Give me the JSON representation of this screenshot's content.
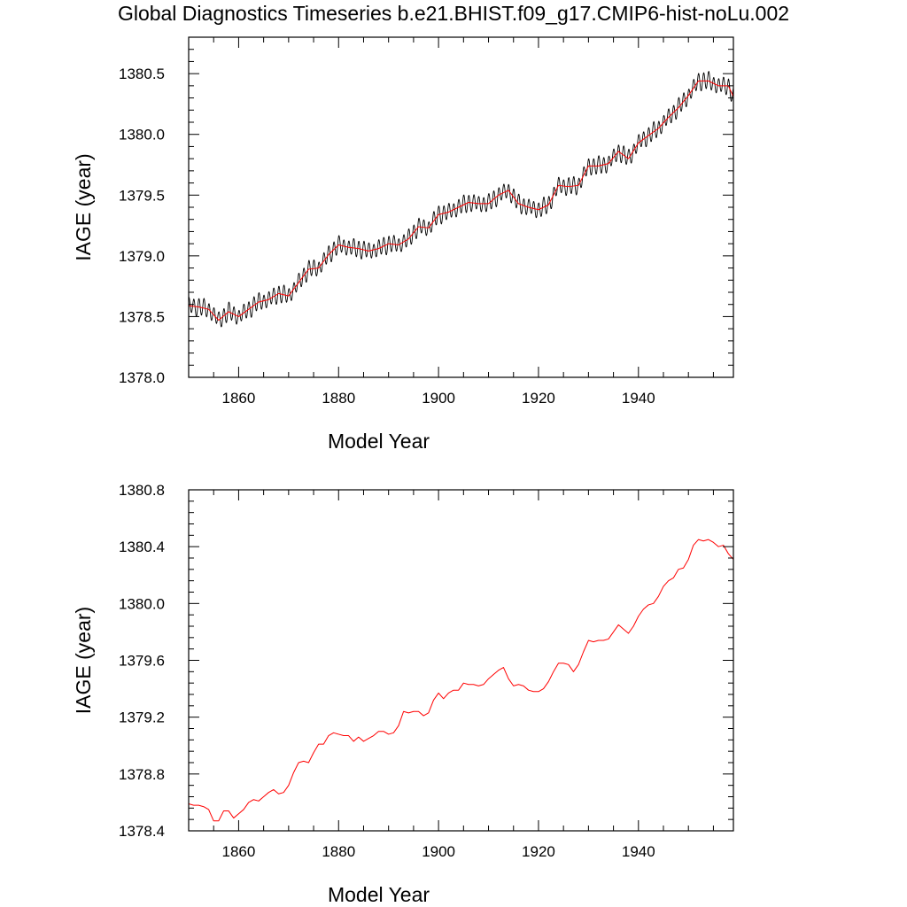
{
  "title": "Global Diagnostics Timeseries b.e21.BHIST.f09_g17.CMIP6-hist-noLu.002",
  "colors": {
    "monthly": "#000000",
    "annual": "#ff0000"
  },
  "chart_data": [
    {
      "type": "line",
      "xlabel": "Model Year",
      "ylabel": "IAGE (year)",
      "xlim": [
        1850,
        1959
      ],
      "ylim": [
        1378.0,
        1380.8
      ],
      "xticks": [
        "1860",
        "1880",
        "1900",
        "1920",
        "1940"
      ],
      "yticks": [
        "1378.0",
        "1378.5",
        "1379.0",
        "1379.5",
        "1380.0",
        "1380.5"
      ],
      "series": [
        {
          "style": "monthly",
          "x": [],
          "values": [],
          "seasonal_amplitude": 0.065
        },
        {
          "style": "annual",
          "x": [
            1850,
            1852,
            1854,
            1856,
            1858,
            1860,
            1862,
            1864,
            1866,
            1868,
            1870,
            1872,
            1874,
            1876,
            1878,
            1880,
            1882,
            1884,
            1886,
            1888,
            1890,
            1892,
            1894,
            1896,
            1898,
            1900,
            1902,
            1904,
            1906,
            1908,
            1910,
            1912,
            1914,
            1916,
            1918,
            1920,
            1922,
            1924,
            1926,
            1928,
            1930,
            1932,
            1934,
            1936,
            1938,
            1940,
            1942,
            1944,
            1946,
            1948,
            1950,
            1952,
            1954,
            1956,
            1958,
            1959
          ],
          "values": [
            1378.59,
            1378.58,
            1378.56,
            1378.47,
            1378.54,
            1378.5,
            1378.56,
            1378.62,
            1378.64,
            1378.69,
            1378.67,
            1378.78,
            1378.89,
            1378.9,
            1379.01,
            1379.09,
            1379.07,
            1379.06,
            1379.04,
            1379.06,
            1379.1,
            1379.09,
            1379.14,
            1379.24,
            1379.23,
            1379.34,
            1379.36,
            1379.4,
            1379.44,
            1379.43,
            1379.43,
            1379.5,
            1379.54,
            1379.43,
            1379.4,
            1379.38,
            1379.42,
            1379.58,
            1379.57,
            1379.58,
            1379.74,
            1379.74,
            1379.76,
            1379.86,
            1379.8,
            1379.93,
            1379.99,
            1380.05,
            1380.14,
            1380.22,
            1380.32,
            1380.44,
            1380.44,
            1380.4,
            1380.4,
            1380.31
          ]
        }
      ]
    },
    {
      "type": "line",
      "xlabel": "Model Year",
      "ylabel": "IAGE (year)",
      "xlim": [
        1850,
        1959
      ],
      "ylim": [
        1378.4,
        1380.8
      ],
      "xticks": [
        "1860",
        "1880",
        "1900",
        "1920",
        "1940"
      ],
      "yticks": [
        "1378.4",
        "1378.8",
        "1379.2",
        "1379.6",
        "1380.0",
        "1380.4",
        "1380.8"
      ],
      "series": [
        {
          "style": "annual",
          "x": [
            1850,
            1851,
            1852,
            1853,
            1854,
            1855,
            1856,
            1857,
            1858,
            1859,
            1860,
            1861,
            1862,
            1863,
            1864,
            1865,
            1866,
            1867,
            1868,
            1869,
            1870,
            1871,
            1872,
            1873,
            1874,
            1875,
            1876,
            1877,
            1878,
            1879,
            1880,
            1881,
            1882,
            1883,
            1884,
            1885,
            1886,
            1887,
            1888,
            1889,
            1890,
            1891,
            1892,
            1893,
            1894,
            1895,
            1896,
            1897,
            1898,
            1899,
            1900,
            1901,
            1902,
            1903,
            1904,
            1905,
            1906,
            1907,
            1908,
            1909,
            1910,
            1911,
            1912,
            1913,
            1914,
            1915,
            1916,
            1917,
            1918,
            1919,
            1920,
            1921,
            1922,
            1923,
            1924,
            1925,
            1926,
            1927,
            1928,
            1929,
            1930,
            1931,
            1932,
            1933,
            1934,
            1935,
            1936,
            1937,
            1938,
            1939,
            1940,
            1941,
            1942,
            1943,
            1944,
            1945,
            1946,
            1947,
            1948,
            1949,
            1950,
            1951,
            1952,
            1953,
            1954,
            1955,
            1956,
            1957,
            1958,
            1959
          ],
          "values": [
            1378.59,
            1378.58,
            1378.58,
            1378.57,
            1378.55,
            1378.47,
            1378.47,
            1378.54,
            1378.54,
            1378.49,
            1378.52,
            1378.55,
            1378.6,
            1378.62,
            1378.61,
            1378.64,
            1378.67,
            1378.69,
            1378.66,
            1378.67,
            1378.72,
            1378.81,
            1378.88,
            1378.89,
            1378.88,
            1378.95,
            1379.01,
            1379.01,
            1379.07,
            1379.09,
            1379.08,
            1379.07,
            1379.07,
            1379.03,
            1379.06,
            1379.03,
            1379.05,
            1379.07,
            1379.1,
            1379.1,
            1379.08,
            1379.09,
            1379.14,
            1379.24,
            1379.23,
            1379.24,
            1379.24,
            1379.21,
            1379.23,
            1379.32,
            1379.37,
            1379.33,
            1379.37,
            1379.39,
            1379.39,
            1379.44,
            1379.43,
            1379.43,
            1379.42,
            1379.43,
            1379.47,
            1379.5,
            1379.53,
            1379.55,
            1379.47,
            1379.42,
            1379.43,
            1379.42,
            1379.39,
            1379.38,
            1379.38,
            1379.4,
            1379.45,
            1379.52,
            1379.58,
            1379.58,
            1379.57,
            1379.52,
            1379.57,
            1379.66,
            1379.74,
            1379.73,
            1379.74,
            1379.74,
            1379.75,
            1379.8,
            1379.85,
            1379.82,
            1379.79,
            1379.84,
            1379.91,
            1379.96,
            1379.99,
            1380.0,
            1380.05,
            1380.12,
            1380.16,
            1380.18,
            1380.24,
            1380.25,
            1380.31,
            1380.41,
            1380.45,
            1380.44,
            1380.45,
            1380.43,
            1380.4,
            1380.41,
            1380.35,
            1380.31
          ]
        }
      ]
    }
  ]
}
